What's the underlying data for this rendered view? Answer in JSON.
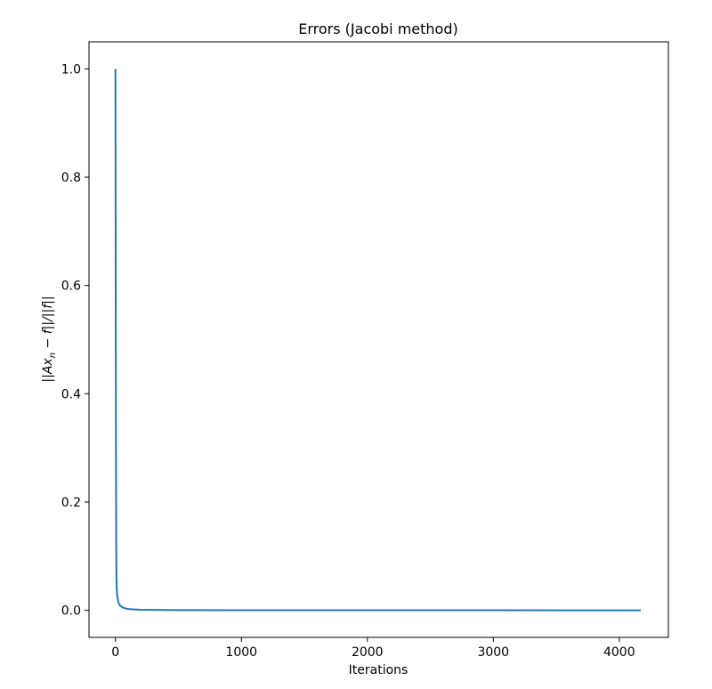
{
  "chart_data": {
    "type": "line",
    "title": "Errors (Jacobi method)",
    "xlabel": "Iterations",
    "ylabel": {
      "open": "||Ax",
      "subscript": "n",
      "close": " − f||/||f||"
    },
    "xlim": [
      -210,
      4390
    ],
    "ylim": [
      -0.05,
      1.05
    ],
    "xticks": [
      0,
      1000,
      2000,
      3000,
      4000
    ],
    "xtick_labels": [
      "0",
      "1000",
      "2000",
      "3000",
      "4000"
    ],
    "yticks": [
      0.0,
      0.2,
      0.4,
      0.6,
      0.8,
      1.0
    ],
    "ytick_labels": [
      "0.0",
      "0.2",
      "0.4",
      "0.6",
      "0.8",
      "1.0"
    ],
    "grid": false,
    "series": [
      {
        "color": "#1f77b4",
        "x": [
          0,
          2,
          4,
          6,
          8,
          10,
          15,
          20,
          30,
          40,
          60,
          80,
          100,
          150,
          200,
          300,
          500,
          1000,
          2000,
          3000,
          4170
        ],
        "y": [
          1.0,
          0.6,
          0.3,
          0.12,
          0.06,
          0.04,
          0.025,
          0.018,
          0.011,
          0.008,
          0.005,
          0.0035,
          0.0025,
          0.0015,
          0.001,
          0.0007,
          0.0004,
          0.0002,
          0.0001,
          5e-05,
          1e-05
        ]
      }
    ]
  }
}
